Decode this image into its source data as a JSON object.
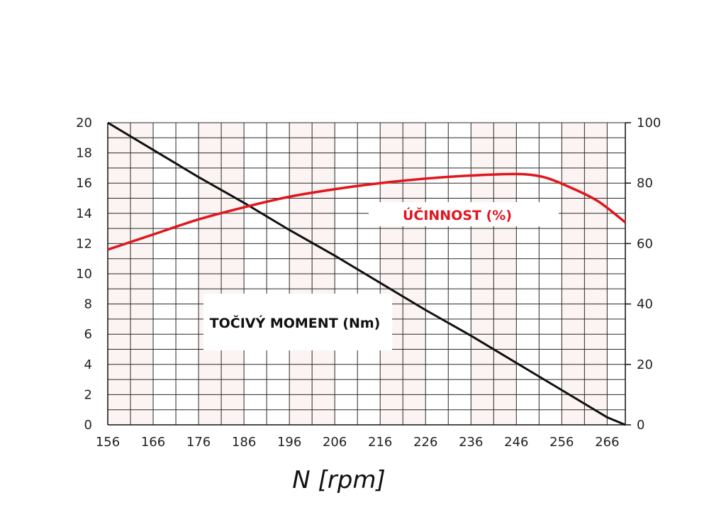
{
  "chart_data": {
    "type": "line",
    "title": "",
    "xlabel": "N [rpm]",
    "x_ticks": [
      156,
      166,
      176,
      186,
      196,
      206,
      216,
      226,
      236,
      246,
      256,
      266
    ],
    "xlim": [
      156,
      270
    ],
    "ylim_left": [
      0,
      20
    ],
    "ylim_right": [
      0,
      100
    ],
    "y_ticks_left": [
      0,
      2,
      4,
      6,
      8,
      10,
      12,
      14,
      16,
      18,
      20
    ],
    "y_ticks_right": [
      0,
      20,
      40,
      60,
      80,
      100
    ],
    "grid": true,
    "series": [
      {
        "name": "TOČIVÝ MOMENT (Nm)",
        "axis": "left",
        "color": "#111111",
        "x": [
          156,
          166,
          176,
          186,
          196,
          206,
          216,
          226,
          236,
          246,
          256,
          266,
          270
        ],
        "y": [
          20,
          18.2,
          16.4,
          14.7,
          12.9,
          11.2,
          9.4,
          7.6,
          5.9,
          4.1,
          2.3,
          0.5,
          0
        ]
      },
      {
        "name": "ÚČINNOST (%)",
        "axis": "right",
        "color": "#e0161e",
        "x": [
          156,
          166,
          176,
          186,
          196,
          206,
          216,
          226,
          236,
          246,
          252,
          258,
          264,
          270
        ],
        "y": [
          58,
          63,
          68,
          72,
          75.5,
          78,
          80,
          81.5,
          82.5,
          83,
          82,
          78.5,
          74,
          67
        ]
      }
    ]
  }
}
